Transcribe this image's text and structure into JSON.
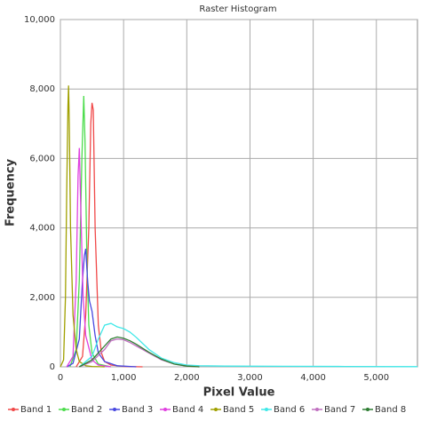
{
  "chart_data": {
    "type": "line",
    "title": "Raster Histogram",
    "x_label": "Pixel Value",
    "y_label": "Frequency",
    "xlim": [
      0,
      5650
    ],
    "ylim": [
      0,
      10000
    ],
    "xticks": [
      0,
      {
        "value": 1000,
        "label": "1,000"
      },
      {
        "value": 2000,
        "label": "2,000"
      },
      {
        "value": 3000,
        "label": "3,000"
      },
      {
        "value": 4000,
        "label": "4,000"
      },
      {
        "value": 5000,
        "label": "5,000"
      }
    ],
    "yticks": [
      0,
      {
        "value": 2000,
        "label": "2,000"
      },
      {
        "value": 4000,
        "label": "4,000"
      },
      {
        "value": 6000,
        "label": "6,000"
      },
      {
        "value": 8000,
        "label": "8,000"
      },
      {
        "value": 10000,
        "label": "10,000"
      }
    ],
    "grid": true,
    "legend": "bottom",
    "series": [
      {
        "name": "Band 1",
        "color": "#f04848",
        "x": [
          250,
          350,
          400,
          450,
          480,
          500,
          520,
          550,
          600,
          650,
          700,
          800,
          1000,
          1300
        ],
        "values": [
          0,
          300,
          1500,
          4000,
          7000,
          7600,
          7400,
          4000,
          1200,
          400,
          150,
          50,
          10,
          0
        ]
      },
      {
        "name": "Band 2",
        "color": "#4cdc4c",
        "x": [
          150,
          250,
          300,
          340,
          370,
          390,
          420,
          450,
          500,
          600,
          800
        ],
        "values": [
          0,
          500,
          2500,
          6000,
          7800,
          6500,
          3000,
          1200,
          400,
          80,
          0
        ]
      },
      {
        "name": "Band 3",
        "color": "#4848e0",
        "x": [
          100,
          200,
          300,
          350,
          380,
          400,
          430,
          460,
          500,
          550,
          600,
          700,
          900,
          1200
        ],
        "values": [
          0,
          100,
          800,
          2500,
          3200,
          3400,
          2500,
          1900,
          1600,
          900,
          400,
          150,
          30,
          0
        ]
      },
      {
        "name": "Band 4",
        "color": "#e040e0",
        "x": [
          100,
          200,
          250,
          280,
          300,
          330,
          360,
          400,
          500,
          600,
          800
        ],
        "values": [
          0,
          300,
          2500,
          5500,
          6300,
          4000,
          2000,
          900,
          200,
          50,
          0
        ]
      },
      {
        "name": "Band 5",
        "color": "#a0a000",
        "x": [
          0,
          50,
          80,
          100,
          120,
          130,
          140,
          160,
          200,
          250,
          300,
          400,
          500,
          700
        ],
        "values": [
          0,
          200,
          2000,
          5000,
          7500,
          8100,
          7000,
          4000,
          1500,
          500,
          150,
          30,
          10,
          0
        ]
      },
      {
        "name": "Band 6",
        "color": "#40e8e8",
        "x": [
          300,
          500,
          600,
          700,
          800,
          900,
          1000,
          1100,
          1200,
          1400,
          1600,
          1800,
          2000,
          2200,
          2600,
          3500,
          4500,
          5650
        ],
        "values": [
          0,
          300,
          800,
          1200,
          1250,
          1150,
          1100,
          1000,
          850,
          500,
          250,
          120,
          50,
          30,
          20,
          15,
          10,
          5
        ]
      },
      {
        "name": "Band 7",
        "color": "#c070c0",
        "x": [
          300,
          500,
          700,
          800,
          900,
          1000,
          1100,
          1200,
          1400,
          1600,
          1800,
          2000,
          2200
        ],
        "values": [
          0,
          150,
          500,
          750,
          800,
          780,
          700,
          600,
          400,
          200,
          80,
          20,
          0
        ]
      },
      {
        "name": "Band 8",
        "color": "#2e7d32",
        "x": [
          300,
          500,
          700,
          800,
          900,
          1000,
          1100,
          1200,
          1400,
          1600,
          1800,
          2000,
          2200
        ],
        "values": [
          0,
          200,
          600,
          800,
          860,
          820,
          750,
          650,
          420,
          220,
          80,
          20,
          0
        ]
      }
    ]
  }
}
